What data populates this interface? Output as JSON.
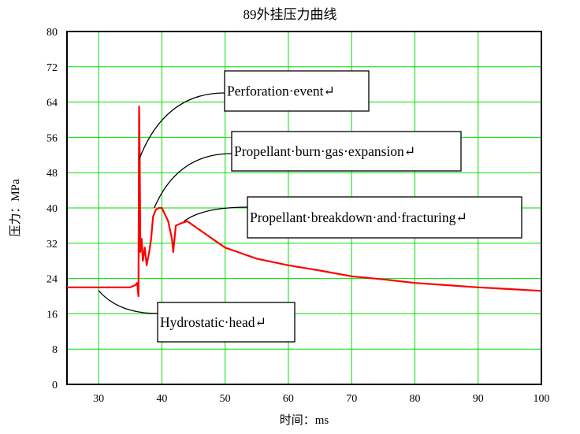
{
  "chart_data": {
    "type": "line",
    "title": "89外挂压力曲线",
    "xlabel": "时间：ms",
    "ylabel": "压力：MPa",
    "xlim": [
      25,
      100
    ],
    "ylim": [
      0,
      80
    ],
    "xticks": [
      "30",
      "40",
      "50",
      "60",
      "70",
      "80",
      "90",
      "100"
    ],
    "yticks": [
      "0",
      "8",
      "16",
      "24",
      "32",
      "40",
      "48",
      "56",
      "64",
      "72",
      "80"
    ],
    "grid": true,
    "grid_color": "#00e000",
    "line_color": "#ff0000",
    "series": [
      {
        "x": [
          25,
          30,
          35,
          35.8,
          36.1,
          36.3,
          36.4,
          36.5,
          36.6,
          36.8,
          37,
          37.3,
          37.6,
          38,
          38.3,
          38.6,
          39,
          39.5,
          40,
          40.5,
          41,
          41.3,
          41.6,
          41.8,
          42.2,
          43,
          44,
          45,
          47,
          49,
          50,
          52,
          55,
          60,
          65,
          70,
          75,
          80,
          85,
          90,
          95,
          100
        ],
        "y": [
          22,
          22,
          22,
          22.5,
          23,
          20,
          63,
          52,
          30,
          33,
          28,
          31,
          27,
          30,
          33,
          38,
          39.5,
          40,
          40,
          38.5,
          37,
          35,
          33,
          30,
          36,
          36.5,
          37,
          36,
          34,
          32,
          31,
          30,
          28.5,
          27,
          25.8,
          24.5,
          23.8,
          23,
          22.5,
          22,
          21.6,
          21.2
        ]
      }
    ],
    "annotations": [
      {
        "text": "Perforation·event↵",
        "target": [
          36.4,
          51
        ]
      },
      {
        "text": "Propellant·burn·gas·expansion↵",
        "target": [
          38.8,
          40
        ]
      },
      {
        "text": "Propellant·breakdown·and·fracturing↵",
        "target": [
          43.5,
          37
        ]
      },
      {
        "text": "Hydrostatic·head↵",
        "target": [
          30,
          22
        ]
      }
    ]
  }
}
